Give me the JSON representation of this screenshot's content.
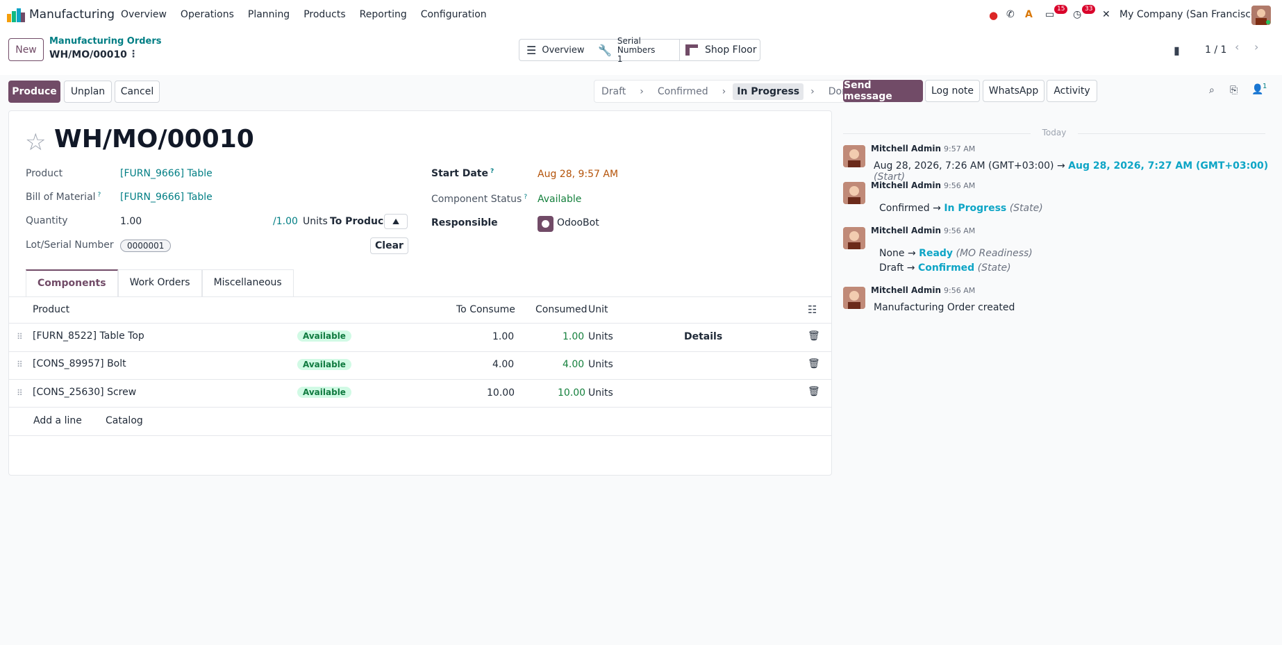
{
  "app": {
    "name": "Manufacturing"
  },
  "menu": [
    "Overview",
    "Operations",
    "Planning",
    "Products",
    "Reporting",
    "Configuration"
  ],
  "systray": {
    "messages_count": "15",
    "activity_count": "33",
    "company": "My Company (San Francisco)"
  },
  "control": {
    "new_label": "New",
    "breadcrumb_parent": "Manufacturing Orders",
    "breadcrumb_current": "WH/MO/00010",
    "pager": "1 / 1",
    "smart_buttons": {
      "overview": "Overview",
      "serial_numbers": "Serial Numbers",
      "serial_count": "1",
      "shop_floor": "Shop Floor"
    }
  },
  "actions": {
    "produce": "Produce",
    "unplan": "Unplan",
    "cancel": "Cancel"
  },
  "status": {
    "draft": "Draft",
    "confirmed": "Confirmed",
    "in_progress": "In Progress",
    "done": "Done",
    "current": "In Progress"
  },
  "form": {
    "title": "WH/MO/00010",
    "product_label": "Product",
    "product_value": "[FURN_9666] Table",
    "bom_label": "Bill of Material",
    "bom_value": "[FURN_9666] Table",
    "qty_label": "Quantity",
    "qty_value": "1.00",
    "qty_max": "/1.00",
    "qty_unit": "Units",
    "to_produce": "To Produce",
    "lot_label": "Lot/Serial Number",
    "lot_value": "0000001",
    "clear_label": "Clear",
    "start_label": "Start Date",
    "start_value": "Aug 28, 9:57 AM",
    "comp_status_label": "Component Status",
    "comp_status_value": "Available",
    "responsible_label": "Responsible",
    "responsible_value": "OdooBot",
    "help_mark": "?"
  },
  "tabs": [
    "Components",
    "Work Orders",
    "Miscellaneous"
  ],
  "table": {
    "headers": {
      "product": "Product",
      "to_consume": "To Consume",
      "consumed": "Consumed",
      "unit": "Unit"
    },
    "rows": [
      {
        "product": "[FURN_8522] Table Top",
        "status": "Available",
        "to_consume": "1.00",
        "consumed": "1.00",
        "unit": "Units",
        "details": "Details"
      },
      {
        "product": "[CONS_89957] Bolt",
        "status": "Available",
        "to_consume": "4.00",
        "consumed": "4.00",
        "unit": "Units",
        "details": ""
      },
      {
        "product": "[CONS_25630] Screw",
        "status": "Available",
        "to_consume": "10.00",
        "consumed": "10.00",
        "unit": "Units",
        "details": ""
      }
    ],
    "add_line": "Add a line",
    "catalog": "Catalog"
  },
  "chatter": {
    "send_message": "Send message",
    "log_note": "Log note",
    "whatsapp": "WhatsApp",
    "activity": "Activity",
    "followers_count": "1",
    "today": "Today",
    "messages": [
      {
        "author": "Mitchell Admin",
        "time": "9:57 AM",
        "old": "Aug 28, 2026, 7:26 AM (GMT+03:00)",
        "arrow": "→",
        "new": "Aug 28, 2026, 7:27 AM (GMT+03:00)",
        "field": "(Start)"
      },
      {
        "author": "Mitchell Admin",
        "time": "9:56 AM",
        "old": "Confirmed",
        "arrow": "→",
        "new": "In Progress",
        "field": "(State)"
      },
      {
        "author": "Mitchell Admin",
        "time": "9:56 AM",
        "old": "None",
        "arrow": "→",
        "new": "Ready",
        "field": "(MO Readiness)",
        "old2": "Draft",
        "new2": "Confirmed",
        "field2": "(State)"
      },
      {
        "author": "Mitchell Admin",
        "time": "9:56 AM",
        "text": "Manufacturing Order created"
      }
    ]
  },
  "colors": {
    "brand": "#714b67",
    "link": "#017e84",
    "success": "#15803d",
    "badge": "#d9042b",
    "date": "#b45309"
  }
}
